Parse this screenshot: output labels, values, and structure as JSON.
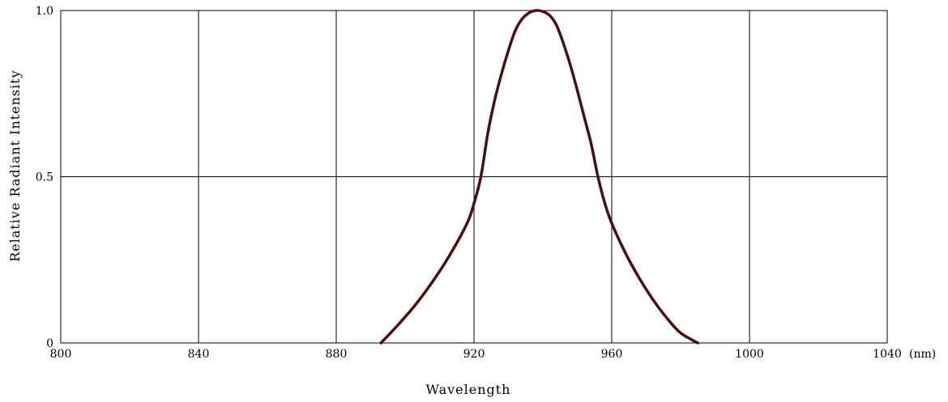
{
  "chart_data": {
    "type": "line",
    "xlabel": "Wavelength",
    "ylabel": "Relative Radiant Intensity",
    "x_unit": "(nm)",
    "xlim": [
      800,
      1040
    ],
    "ylim": [
      0,
      1.0
    ],
    "x_ticks": [
      "800",
      "840",
      "880",
      "920",
      "960",
      "1000",
      "1040"
    ],
    "y_ticks": [
      "0",
      "0.5",
      "1.0"
    ],
    "grid": true,
    "series": [
      {
        "color": "#4a0f0f",
        "x": [
          893,
          898,
          903,
          908,
          913,
          918,
          920,
          922,
          924,
          926,
          928,
          930,
          932,
          934,
          936,
          938,
          940,
          942,
          944,
          946,
          948,
          950,
          952,
          954,
          956,
          958,
          960,
          964,
          968,
          972,
          976,
          980,
          985
        ],
        "y": [
          0.0,
          0.055,
          0.115,
          0.185,
          0.265,
          0.36,
          0.42,
          0.5,
          0.63,
          0.73,
          0.81,
          0.88,
          0.94,
          0.975,
          0.993,
          1.0,
          0.997,
          0.985,
          0.955,
          0.9,
          0.835,
          0.76,
          0.68,
          0.6,
          0.5,
          0.42,
          0.36,
          0.27,
          0.195,
          0.13,
          0.075,
          0.03,
          0.0
        ]
      }
    ]
  }
}
